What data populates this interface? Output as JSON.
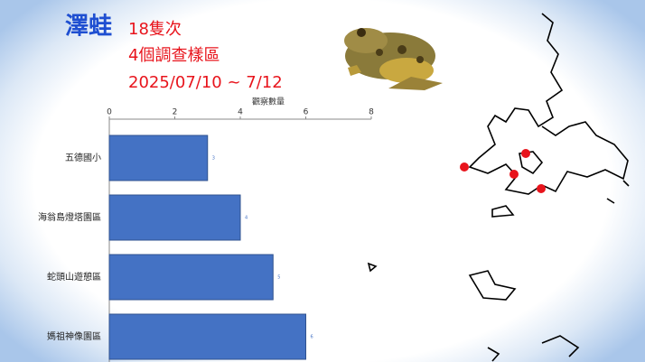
{
  "chart_data": {
    "type": "bar",
    "orientation": "horizontal",
    "title": "澤蛙",
    "subtitle_lines": [
      "18隻次",
      "4個調查樣區",
      "2025/07/10 ~ 7/12"
    ],
    "x_label": "觀察數量",
    "categories": [
      "五德國小",
      "海翁島燈塔園區",
      "蛇頭山遊憩區",
      "媽祖神像園區"
    ],
    "values": [
      3,
      4,
      5,
      6
    ],
    "color": "#4472c4",
    "xlim": [
      0,
      8
    ],
    "xticks": [
      0,
      2,
      4,
      6,
      8
    ]
  }
}
